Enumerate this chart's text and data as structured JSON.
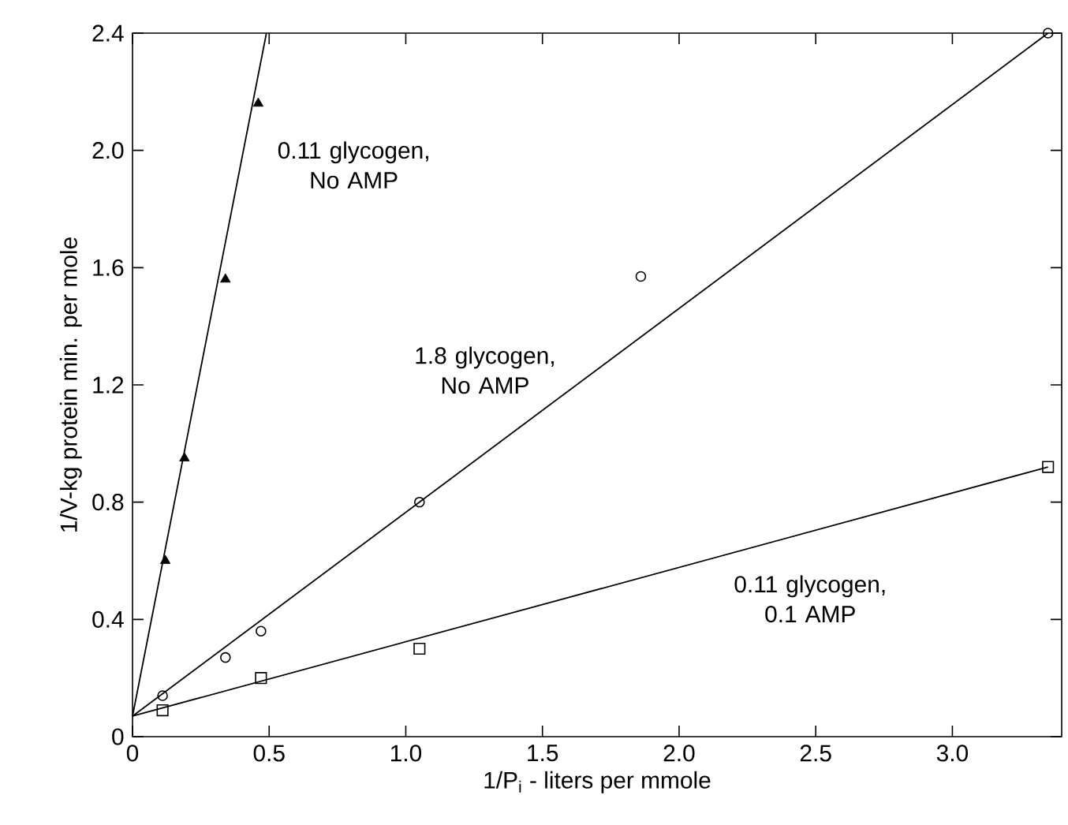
{
  "chart_data": {
    "type": "scatter",
    "xlabel": "1/P$_{i}$ - liters per mmole",
    "ylabel": "1/V-kg protein min. per mole",
    "xlim": [
      0,
      3.4
    ],
    "ylim": [
      0,
      2.4
    ],
    "xticks": [
      0,
      0.5,
      {
        "value": 1,
        "label": "1.0"
      },
      1.5,
      {
        "value": 2,
        "label": "2.0"
      },
      2.5,
      {
        "value": 3,
        "label": "3.0"
      }
    ],
    "yticks": [
      0,
      0.4,
      0.8,
      1.2,
      1.6,
      {
        "value": 2,
        "label": "2.0"
      },
      2.4
    ],
    "grid": false,
    "series": [
      {
        "marker": "triangle",
        "color": "#000000",
        "x": [
          0.12,
          0.19,
          0.34,
          0.46
        ],
        "values": [
          0.6,
          0.95,
          1.56,
          2.16
        ]
      },
      {
        "marker": "circle",
        "color": "#000000",
        "x": [
          0.11,
          0.34,
          0.47,
          1.05,
          1.86,
          3.35
        ],
        "values": [
          0.14,
          0.27,
          0.36,
          0.8,
          1.57,
          2.4
        ]
      },
      {
        "marker": "square",
        "color": "#000000",
        "x": [
          0.11,
          0.47,
          1.05,
          3.35
        ],
        "values": [
          0.09,
          0.2,
          0.3,
          0.92
        ]
      },
      {
        "type": "line",
        "marker": "none",
        "line_style": "solid",
        "color": "#000000",
        "x": [
          0,
          0.49
        ],
        "values": [
          0.07,
          2.4
        ]
      },
      {
        "type": "line",
        "marker": "none",
        "line_style": "solid",
        "color": "#000000",
        "x": [
          0,
          3.35
        ],
        "values": [
          0.07,
          2.4
        ]
      },
      {
        "type": "line",
        "marker": "none",
        "line_style": "solid",
        "color": "#000000",
        "x": [
          0,
          3.35
        ],
        "values": [
          0.07,
          0.92
        ]
      }
    ],
    "annotations": [
      "0.11 glycogen, No AMP",
      "1.8 glycogen, No AMP",
      "0.11 glycogen, 0.1 AMP"
    ]
  }
}
